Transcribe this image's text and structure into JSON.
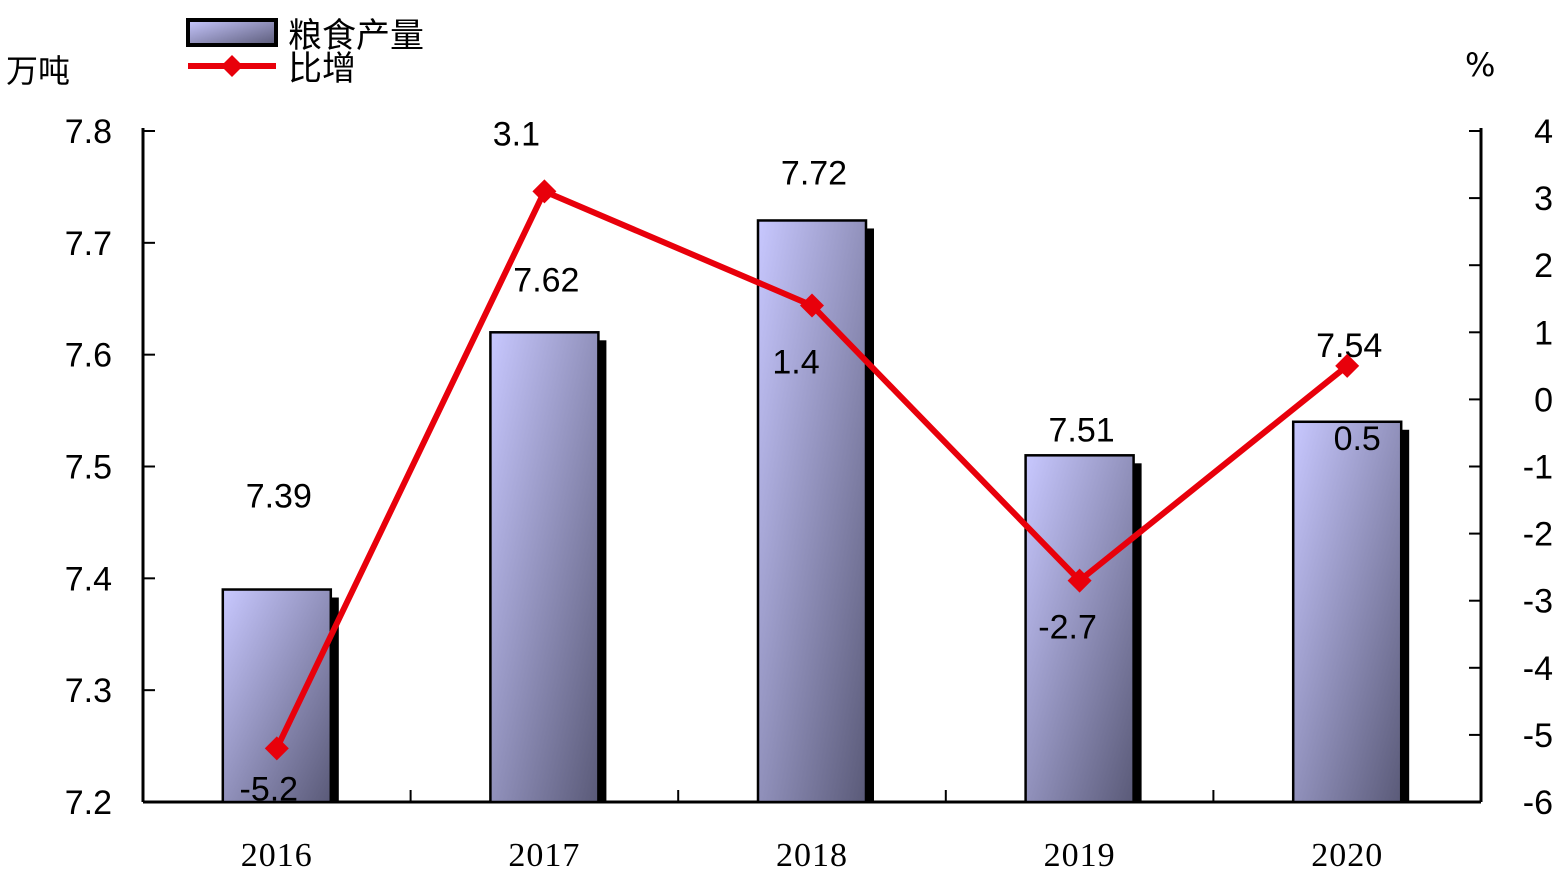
{
  "chart_data": {
    "type": "bar",
    "categories": [
      "2016",
      "2017",
      "2018",
      "2019",
      "2020"
    ],
    "series": [
      {
        "name": "粮食产量",
        "type": "bar",
        "axis": "left",
        "values": [
          7.39,
          7.62,
          7.72,
          7.51,
          7.54
        ]
      },
      {
        "name": "比增",
        "type": "line",
        "axis": "right",
        "values": [
          -5.2,
          3.1,
          1.4,
          -2.7,
          0.5
        ]
      }
    ],
    "left_axis": {
      "unit": "万吨",
      "ylim": [
        7.2,
        7.8
      ],
      "ticks": [
        "7.2",
        "7.3",
        "7.4",
        "7.5",
        "7.6",
        "7.7",
        "7.8"
      ]
    },
    "right_axis": {
      "unit": "%",
      "ylim": [
        -6,
        4
      ],
      "ticks": [
        "-6",
        "-5",
        "-4",
        "-3",
        "-2",
        "-1",
        "0",
        "1",
        "2",
        "3",
        "4"
      ]
    },
    "legend_position": "top-left",
    "grid": false,
    "colors": {
      "bar_light": "#c8c8ff",
      "bar_dark": "#5a5a78",
      "line": "#e8000b"
    }
  }
}
